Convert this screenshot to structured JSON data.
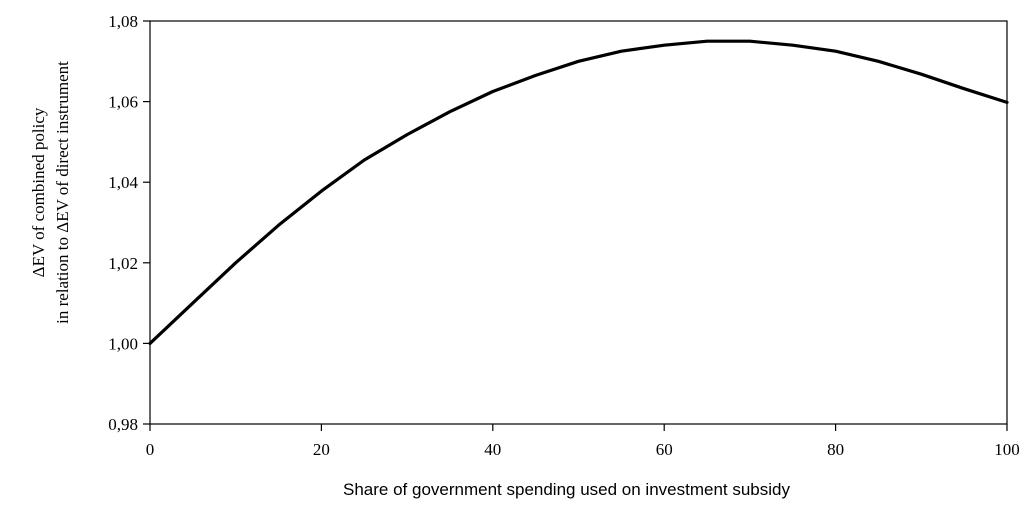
{
  "chart_data": {
    "type": "line",
    "title": "",
    "xlabel": "Share of government spending used on investment subsidy",
    "ylabel_lines": [
      "ΔEV of combined policy",
      "in relation to  ΔEV of direct instrument"
    ],
    "xlim": [
      0,
      100
    ],
    "ylim": [
      0.98,
      1.08
    ],
    "x_ticks": [
      0,
      20,
      40,
      60,
      80,
      100
    ],
    "x_tick_labels": [
      "0",
      "20",
      "40",
      "60",
      "80",
      "100"
    ],
    "y_ticks": [
      0.98,
      1.0,
      1.02,
      1.04,
      1.06,
      1.08
    ],
    "y_tick_labels": [
      "0,98",
      "1,00",
      "1,02",
      "1,04",
      "1,06",
      "1,08"
    ],
    "grid": false,
    "series": [
      {
        "color": "#000000",
        "x": [
          0,
          5,
          10,
          15,
          20,
          25,
          30,
          35,
          40,
          45,
          50,
          55,
          60,
          65,
          70,
          75,
          80,
          85,
          90,
          95,
          100
        ],
        "y": [
          1.0,
          1.01,
          1.02,
          1.0293,
          1.0378,
          1.0455,
          1.0518,
          1.0575,
          1.0625,
          1.0665,
          1.07,
          1.0725,
          1.074,
          1.075,
          1.075,
          1.074,
          1.0725,
          1.07,
          1.0668,
          1.0632,
          1.0598
        ]
      }
    ]
  }
}
